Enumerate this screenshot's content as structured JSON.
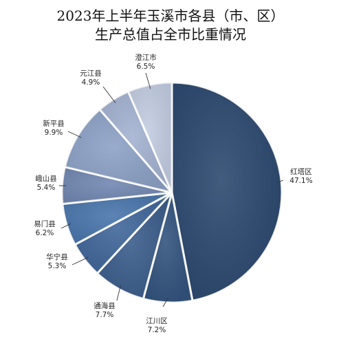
{
  "chart_data": {
    "type": "pie",
    "title": "2023年上半年玉溪市各县（市、区）",
    "subtitle": "生产总值占全市比重情况",
    "slices": [
      {
        "name": "红塔区",
        "value": 47.1,
        "value_label": "47.1%",
        "color": "#2d4a70"
      },
      {
        "name": "江川区",
        "value": 7.2,
        "value_label": "7.2%",
        "color": "#34557f"
      },
      {
        "name": "通海县",
        "value": 7.7,
        "value_label": "7.7%",
        "color": "#3c5e8c"
      },
      {
        "name": "华宁县",
        "value": 5.3,
        "value_label": "5.3%",
        "color": "#41679a"
      },
      {
        "name": "易门县",
        "value": 6.2,
        "value_label": "6.2%",
        "color": "#4a76ac"
      },
      {
        "name": "峨山县",
        "value": 5.4,
        "value_label": "5.4%",
        "color": "#7388b2"
      },
      {
        "name": "新平县",
        "value": 9.9,
        "value_label": "9.9%",
        "color": "#8da2c6"
      },
      {
        "name": "元江县",
        "value": 4.9,
        "value_label": "4.9%",
        "color": "#a4b3d2"
      },
      {
        "name": "澄江市",
        "value": 6.5,
        "value_label": "6.5%",
        "color": "#c3cde2"
      }
    ],
    "start_angle_deg": 0,
    "direction": "clockwise",
    "legend": "none",
    "labels": "outside with leader lines"
  }
}
